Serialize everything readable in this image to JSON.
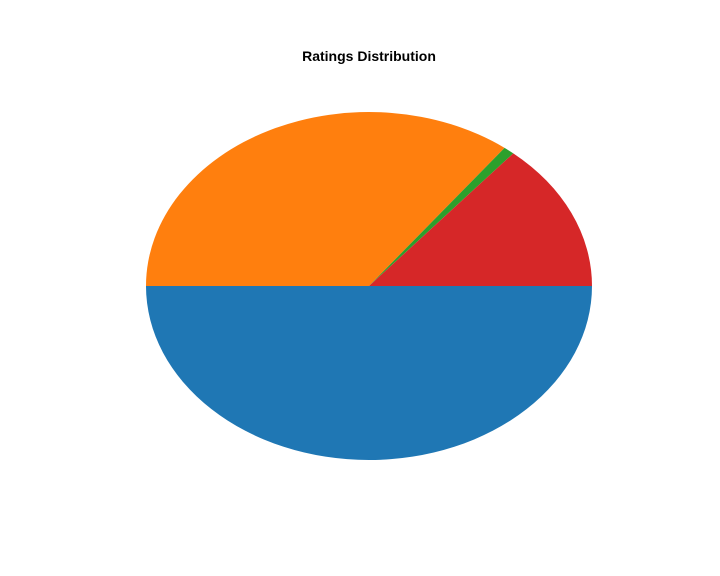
{
  "chart_data": {
    "type": "pie",
    "title": "Ratings Distribution",
    "slices": [
      {
        "value": 50.0,
        "color": "#1f77b4"
      },
      {
        "value": 35.4,
        "color": "#ff7f0e"
      },
      {
        "value": 0.8,
        "color": "#2ca02c"
      },
      {
        "value": 13.8,
        "color": "#d62728"
      }
    ],
    "start_angle_deg": 0,
    "direction": "clockwise-on-screen",
    "legend": "none"
  }
}
